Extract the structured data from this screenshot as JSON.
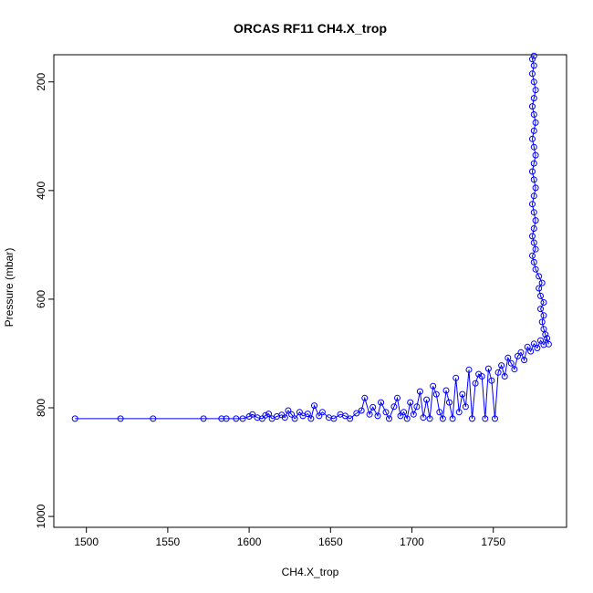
{
  "chart_data": {
    "type": "line",
    "title": "ORCAS RF11 CH4.X_trop",
    "xlabel": "CH4.X_trop",
    "ylabel": "Pressure (mbar)",
    "xlim": [
      1480,
      1795
    ],
    "ylim": [
      1020,
      150
    ],
    "x_ticks": [
      1500,
      1550,
      1600,
      1650,
      1700,
      1750
    ],
    "x_tick_labels": [
      "1500",
      "1550",
      "1600",
      "1650",
      "1700",
      "1750"
    ],
    "y_ticks": [
      200,
      400,
      600,
      800,
      1000
    ],
    "y_tick_labels": [
      "200",
      "400",
      "600",
      "800",
      "1000"
    ],
    "y_reversed": true,
    "grid": false,
    "series_color": "#0000ff",
    "points": [
      [
        1493,
        820
      ],
      [
        1521,
        820
      ],
      [
        1541,
        820
      ],
      [
        1572,
        820
      ],
      [
        1583,
        820
      ],
      [
        1586,
        820
      ],
      [
        1592,
        820
      ],
      [
        1596,
        820
      ],
      [
        1600,
        816
      ],
      [
        1602,
        812
      ],
      [
        1605,
        818
      ],
      [
        1608,
        820
      ],
      [
        1610,
        814
      ],
      [
        1612,
        811
      ],
      [
        1614,
        820
      ],
      [
        1617,
        816
      ],
      [
        1620,
        813
      ],
      [
        1622,
        818
      ],
      [
        1624,
        805
      ],
      [
        1626,
        812
      ],
      [
        1628,
        820
      ],
      [
        1631,
        808
      ],
      [
        1633,
        815
      ],
      [
        1636,
        811
      ],
      [
        1638,
        820
      ],
      [
        1640,
        796
      ],
      [
        1643,
        815
      ],
      [
        1645,
        808
      ],
      [
        1649,
        818
      ],
      [
        1652,
        820
      ],
      [
        1656,
        812
      ],
      [
        1659,
        815
      ],
      [
        1662,
        820
      ],
      [
        1666,
        810
      ],
      [
        1669,
        805
      ],
      [
        1671,
        782
      ],
      [
        1674,
        812
      ],
      [
        1676,
        799
      ],
      [
        1679,
        815
      ],
      [
        1681,
        790
      ],
      [
        1684,
        808
      ],
      [
        1686,
        820
      ],
      [
        1689,
        798
      ],
      [
        1691,
        782
      ],
      [
        1693,
        815
      ],
      [
        1695,
        808
      ],
      [
        1697,
        820
      ],
      [
        1699,
        790
      ],
      [
        1701,
        812
      ],
      [
        1703,
        798
      ],
      [
        1705,
        770
      ],
      [
        1707,
        818
      ],
      [
        1709,
        785
      ],
      [
        1711,
        820
      ],
      [
        1713,
        760
      ],
      [
        1715,
        775
      ],
      [
        1717,
        808
      ],
      [
        1719,
        820
      ],
      [
        1721,
        768
      ],
      [
        1723,
        790
      ],
      [
        1725,
        820
      ],
      [
        1727,
        745
      ],
      [
        1729,
        808
      ],
      [
        1731,
        775
      ],
      [
        1733,
        798
      ],
      [
        1735,
        730
      ],
      [
        1737,
        820
      ],
      [
        1739,
        755
      ],
      [
        1741,
        738
      ],
      [
        1743,
        742
      ],
      [
        1745,
        820
      ],
      [
        1747,
        728
      ],
      [
        1749,
        750
      ],
      [
        1751,
        820
      ],
      [
        1753,
        735
      ],
      [
        1755,
        722
      ],
      [
        1757,
        742
      ],
      [
        1759,
        708
      ],
      [
        1761,
        718
      ],
      [
        1763,
        729
      ],
      [
        1765,
        705
      ],
      [
        1767,
        698
      ],
      [
        1769,
        712
      ],
      [
        1771,
        688
      ],
      [
        1773,
        696
      ],
      [
        1775,
        682
      ],
      [
        1777,
        690
      ],
      [
        1779,
        676
      ],
      [
        1781,
        684
      ],
      [
        1783,
        672
      ],
      [
        1784,
        683
      ],
      [
        1782,
        665
      ],
      [
        1781,
        655
      ],
      [
        1780,
        642
      ],
      [
        1781,
        630
      ],
      [
        1779,
        618
      ],
      [
        1781,
        606
      ],
      [
        1779,
        594
      ],
      [
        1778,
        580
      ],
      [
        1780,
        570
      ],
      [
        1778,
        558
      ],
      [
        1776,
        545
      ],
      [
        1775,
        532
      ],
      [
        1774,
        520
      ],
      [
        1776,
        508
      ],
      [
        1775,
        496
      ],
      [
        1774,
        484
      ],
      [
        1775,
        470
      ],
      [
        1776,
        455
      ],
      [
        1775,
        440
      ],
      [
        1774,
        425
      ],
      [
        1775,
        410
      ],
      [
        1776,
        395
      ],
      [
        1775,
        380
      ],
      [
        1774,
        365
      ],
      [
        1775,
        350
      ],
      [
        1776,
        335
      ],
      [
        1775,
        320
      ],
      [
        1774,
        305
      ],
      [
        1775,
        290
      ],
      [
        1776,
        275
      ],
      [
        1775,
        260
      ],
      [
        1774,
        245
      ],
      [
        1775,
        230
      ],
      [
        1776,
        215
      ],
      [
        1775,
        200
      ],
      [
        1774,
        185
      ],
      [
        1775,
        170
      ],
      [
        1774,
        158
      ],
      [
        1775,
        152
      ]
    ]
  }
}
